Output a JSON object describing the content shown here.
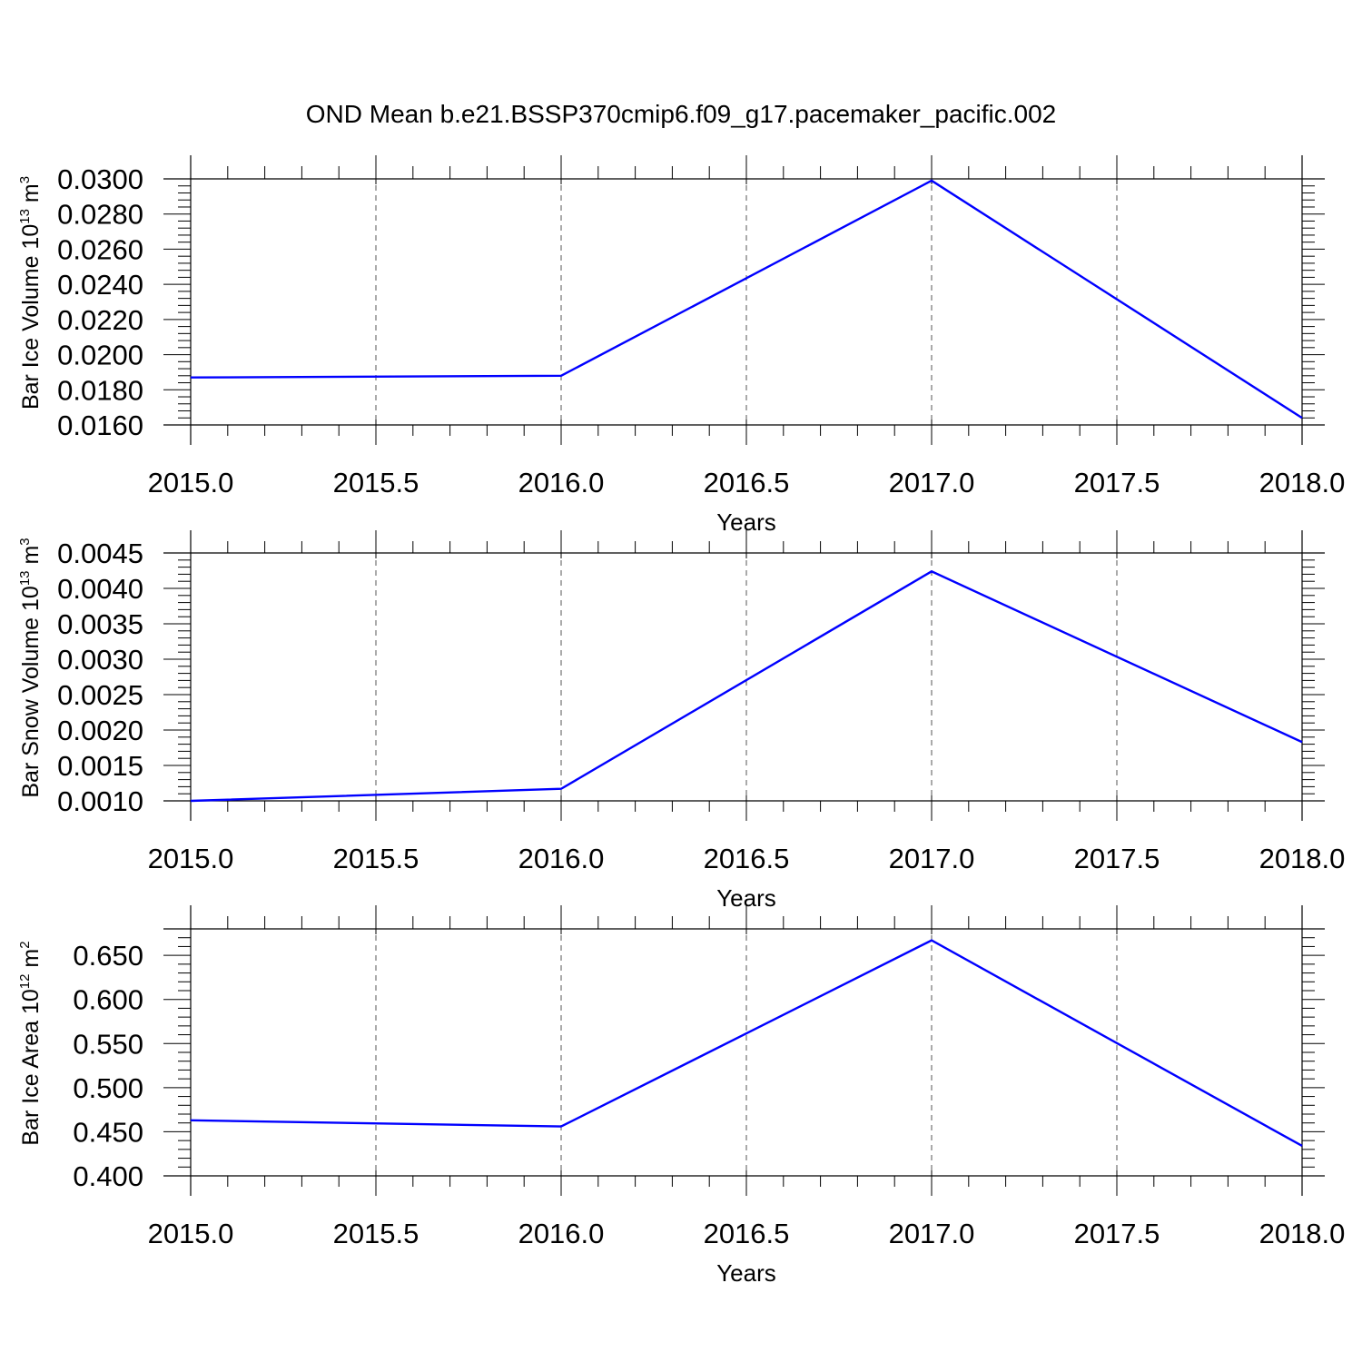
{
  "title": "OND Mean b.e21.BSSP370cmip6.f09_g17.pacemaker_pacific.002",
  "colors": {
    "line": "#0000ff",
    "axis": "#000000",
    "grid": "#555555"
  },
  "chart_data": [
    {
      "type": "line",
      "ylabel": {
        "text": "Bar Ice Volume 10",
        "sup": "13",
        "unit": " m",
        "unit_sup": "3"
      },
      "xlabel": "Years",
      "x": [
        2015.0,
        2016.0,
        2017.0,
        2018.0
      ],
      "series": [
        {
          "values": [
            0.0187,
            0.0188,
            0.0299,
            0.0164
          ]
        }
      ],
      "xlim": [
        2015.0,
        2018.0
      ],
      "ylim": [
        0.016,
        0.03
      ],
      "xticks": [
        "2015.0",
        "2015.5",
        "2016.0",
        "2016.5",
        "2017.0",
        "2017.5",
        "2018.0"
      ],
      "xtick_values": [
        2015.0,
        2015.5,
        2016.0,
        2016.5,
        2017.0,
        2017.5,
        2018.0
      ],
      "yticks": [
        "0.0160",
        "0.0180",
        "0.0200",
        "0.0220",
        "0.0240",
        "0.0260",
        "0.0280",
        "0.0300"
      ],
      "ytick_values": [
        0.016,
        0.018,
        0.02,
        0.022,
        0.024,
        0.026,
        0.028,
        0.03
      ],
      "yminor_step": 0.0004,
      "xminor_step": 0.1,
      "grid": "x dashed"
    },
    {
      "type": "line",
      "ylabel": {
        "text": "Bar Snow Volume 10",
        "sup": "13",
        "unit": " m",
        "unit_sup": "3"
      },
      "xlabel": "Years",
      "x": [
        2015.0,
        2016.0,
        2017.0,
        2018.0
      ],
      "series": [
        {
          "values": [
            0.001,
            0.00117,
            0.00424,
            0.00183
          ]
        }
      ],
      "xlim": [
        2015.0,
        2018.0
      ],
      "ylim": [
        0.001,
        0.0045
      ],
      "xticks": [
        "2015.0",
        "2015.5",
        "2016.0",
        "2016.5",
        "2017.0",
        "2017.5",
        "2018.0"
      ],
      "xtick_values": [
        2015.0,
        2015.5,
        2016.0,
        2016.5,
        2017.0,
        2017.5,
        2018.0
      ],
      "yticks": [
        "0.0010",
        "0.0015",
        "0.0020",
        "0.0025",
        "0.0030",
        "0.0035",
        "0.0040",
        "0.0045"
      ],
      "ytick_values": [
        0.001,
        0.0015,
        0.002,
        0.0025,
        0.003,
        0.0035,
        0.004,
        0.0045
      ],
      "yminor_step": 0.0001,
      "xminor_step": 0.1,
      "grid": "x dashed"
    },
    {
      "type": "line",
      "ylabel": {
        "text": "Bar Ice Area 10",
        "sup": "12",
        "unit": " m",
        "unit_sup": "2"
      },
      "xlabel": "Years",
      "x": [
        2015.0,
        2016.0,
        2017.0,
        2018.0
      ],
      "series": [
        {
          "values": [
            0.463,
            0.456,
            0.667,
            0.434
          ]
        }
      ],
      "xlim": [
        2015.0,
        2018.0
      ],
      "ylim": [
        0.4,
        0.68
      ],
      "xticks": [
        "2015.0",
        "2015.5",
        "2016.0",
        "2016.5",
        "2017.0",
        "2017.5",
        "2018.0"
      ],
      "xtick_values": [
        2015.0,
        2015.5,
        2016.0,
        2016.5,
        2017.0,
        2017.5,
        2018.0
      ],
      "yticks": [
        "0.400",
        "0.450",
        "0.500",
        "0.550",
        "0.600",
        "0.650"
      ],
      "ytick_values": [
        0.4,
        0.45,
        0.5,
        0.55,
        0.6,
        0.65
      ],
      "yminor_step": 0.01,
      "xminor_step": 0.1,
      "grid": "x dashed"
    }
  ]
}
